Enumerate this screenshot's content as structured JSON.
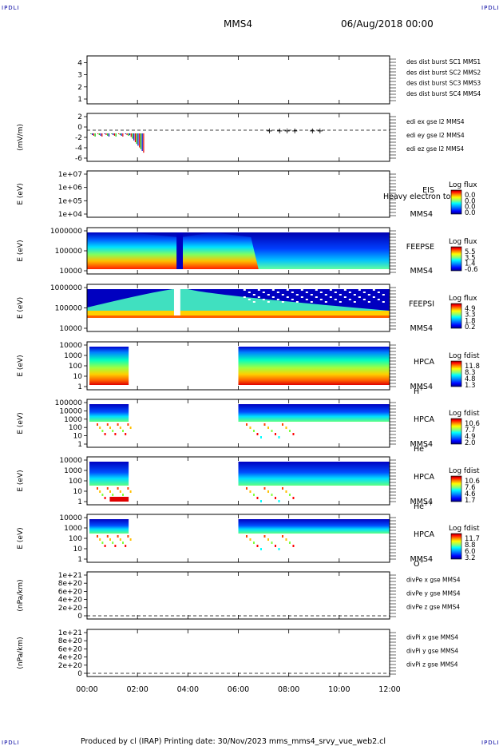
{
  "header": {
    "corner_label": "IPDLI",
    "spacecraft": "MMS4",
    "date": "06/Aug/2018 00:00"
  },
  "footer": {
    "text": "Produced by cl (IRAP)   Printing date: 30/Nov/2023   mms_mms4_srvy_vue_web2.cl"
  },
  "colors": {
    "red": "#e00000",
    "magenta": "#e000e0",
    "green": "#00c000",
    "blue": "#0000c0",
    "colorbar": [
      "#000080",
      "#0000ff",
      "#0080ff",
      "#00ffff",
      "#80ff80",
      "#ffff00",
      "#ff8000",
      "#ff0000",
      "#800000"
    ]
  },
  "chart_data": [
    {
      "id": "des",
      "type": "line",
      "xlabel": "",
      "ylabel": "",
      "y_ticks": [
        "1",
        "2",
        "3",
        "4"
      ],
      "ylim": [
        0.6,
        4.6
      ],
      "legend_placement": "right",
      "series": [
        {
          "name": "des dist burst SC1 MMS1",
          "color": "#0000c0",
          "values": []
        },
        {
          "name": "des dist burst SC2 MMS2",
          "color": "#e000e0",
          "values": []
        },
        {
          "name": "des dist burst SC3 MMS3",
          "color": "#e00000",
          "values": []
        },
        {
          "name": "des dist burst SC4 MMS4",
          "color": "#00c000",
          "values": []
        }
      ]
    },
    {
      "id": "edi",
      "type": "scatter",
      "ylabel": "(mV/m)",
      "y_ticks": [
        "2",
        "0",
        "-2",
        "-4",
        "-6"
      ],
      "ylim": [
        -6.8,
        2.8
      ],
      "zero_line": true,
      "legend_placement": "right",
      "series": [
        {
          "name": "edi ex gse l2 MMS4",
          "color": "#e00000"
        },
        {
          "name": "edi ey gse l2 MMS4",
          "color": "#00c000"
        },
        {
          "name": "edi ez gse l2 MMS4",
          "color": "#0000c0"
        }
      ]
    },
    {
      "id": "eis",
      "type": "heatmap",
      "ylabel": "E (eV)",
      "y_ticks": [
        "1e+07",
        "1e+06",
        "1e+05",
        "1e+04"
      ],
      "scale": "log",
      "right_labels": [
        "EIS",
        "MMS4"
      ],
      "overlap_text": "Heavy electron to",
      "colorbar_title": "Log flux",
      "colorbar_ticks": [
        "0.0",
        "0.0",
        "0.0",
        "0.0"
      ]
    },
    {
      "id": "feepse",
      "type": "heatmap",
      "ylabel": "E (eV)",
      "y_ticks": [
        "1000000",
        "100000",
        "10000"
      ],
      "scale": "log",
      "right_labels": [
        "FEEPSE",
        "MMS4"
      ],
      "colorbar_title": "Log flux",
      "colorbar_ticks": [
        "5.5",
        "3.5",
        "1.4",
        "-0.6"
      ]
    },
    {
      "id": "feepsi",
      "type": "heatmap",
      "ylabel": "E (eV)",
      "y_ticks": [
        "1000000",
        "100000",
        "10000"
      ],
      "scale": "log",
      "right_labels": [
        "FEEPSI",
        "MMS4"
      ],
      "colorbar_title": "Log flux",
      "colorbar_ticks": [
        "4.9",
        "3.3",
        "1.8",
        "0.2"
      ]
    },
    {
      "id": "hpca_h",
      "type": "heatmap",
      "ylabel": "E (eV)",
      "y_ticks": [
        "10000",
        "1000",
        "100",
        "10",
        "1"
      ],
      "scale": "log",
      "right_labels": [
        "HPCA",
        "MMS4"
      ],
      "species": "H",
      "species_sup": "+",
      "colorbar_title": "Log fdist",
      "colorbar_ticks": [
        "11.8",
        "8.3",
        "4.8",
        "1.3"
      ]
    },
    {
      "id": "hpca_he1",
      "type": "heatmap",
      "ylabel": "E (eV)",
      "y_ticks": [
        "100000",
        "10000",
        "1000",
        "100",
        "10",
        "1"
      ],
      "scale": "log",
      "right_labels": [
        "HPCA",
        "MMS4"
      ],
      "species": "He",
      "species_sup": "+",
      "colorbar_title": "Log fdist",
      "colorbar_ticks": [
        "10.6",
        "7.7",
        "4.9",
        "2.0"
      ]
    },
    {
      "id": "hpca_he2",
      "type": "heatmap",
      "ylabel": "E (eV)",
      "y_ticks": [
        "10000",
        "1000",
        "100",
        "10",
        "1"
      ],
      "scale": "log",
      "right_labels": [
        "HPCA",
        "MMS4"
      ],
      "species": "He",
      "species_sup": "++",
      "colorbar_title": "Log fdist",
      "colorbar_ticks": [
        "10.6",
        "7.6",
        "4.6",
        "1.7"
      ]
    },
    {
      "id": "hpca_o",
      "type": "heatmap",
      "ylabel": "E (eV)",
      "y_ticks": [
        "10000",
        "1000",
        "100",
        "10",
        "1"
      ],
      "scale": "log",
      "right_labels": [
        "HPCA",
        "MMS4"
      ],
      "species": "O",
      "species_sup": "+",
      "colorbar_title": "Log fdist",
      "colorbar_ticks": [
        "11.7",
        "8.8",
        "6.0",
        "3.2"
      ]
    },
    {
      "id": "divpe",
      "type": "line",
      "ylabel": "(nPa/km)",
      "y_ticks": [
        "1e+21",
        "8e+20",
        "6e+20",
        "4e+20",
        "2e+20",
        "0"
      ],
      "ylim": [
        -5e+19,
        1.05e+21
      ],
      "zero_line": true,
      "legend_placement": "right",
      "series": [
        {
          "name": "divPe x gse MMS4",
          "color": "#e00000",
          "values": []
        },
        {
          "name": "divPe y gse MMS4",
          "color": "#00c000",
          "values": []
        },
        {
          "name": "divPe z gse MMS4",
          "color": "#0000c0",
          "values": []
        }
      ]
    },
    {
      "id": "divpi",
      "type": "line",
      "ylabel": "(nPa/km)",
      "y_ticks": [
        "1e+21",
        "8e+20",
        "6e+20",
        "4e+20",
        "2e+20",
        "0"
      ],
      "ylim": [
        -5e+19,
        1.05e+21
      ],
      "zero_line": true,
      "legend_placement": "right",
      "series": [
        {
          "name": "divPi x gse MMS4",
          "color": "#e00000",
          "values": []
        },
        {
          "name": "divPi y gse MMS4",
          "color": "#00c000",
          "values": []
        },
        {
          "name": "divPi z gse MMS4",
          "color": "#0000c0",
          "values": []
        }
      ]
    }
  ],
  "time_axis": {
    "ticks": [
      "00:00",
      "02:00",
      "04:00",
      "06:00",
      "08:00",
      "10:00",
      "12:00"
    ]
  }
}
